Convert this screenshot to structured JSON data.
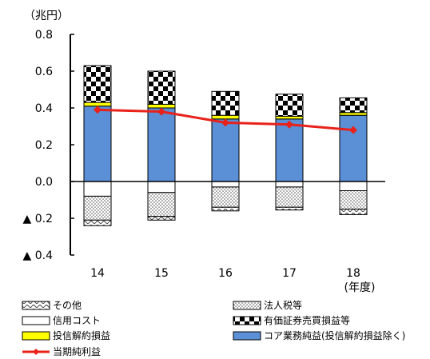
{
  "chart_data": {
    "type": "bar",
    "subtype": "stacked-bar-with-line",
    "y_unit": "（兆円）",
    "x_unit": "(年度)",
    "categories": [
      "14",
      "15",
      "16",
      "17",
      "18"
    ],
    "ylim": [
      -0.4,
      0.8
    ],
    "yticks": [
      {
        "value": 0.8,
        "label": "0.8"
      },
      {
        "value": 0.6,
        "label": "0.6"
      },
      {
        "value": 0.4,
        "label": "0.4"
      },
      {
        "value": 0.2,
        "label": "0.2"
      },
      {
        "value": 0.0,
        "label": "0.0"
      },
      {
        "value": -0.2,
        "label": "▲ 0.2"
      },
      {
        "value": -0.4,
        "label": "▲ 0.4"
      }
    ],
    "grid": false,
    "legend_position": "bottom",
    "series": [
      {
        "key": "core",
        "name": "コア業務純益(投信解約損益除く)",
        "kind": "bar",
        "color": "#5b8fd6",
        "values": [
          0.41,
          0.4,
          0.34,
          0.34,
          0.36
        ]
      },
      {
        "key": "trust",
        "name": "投信解約損益",
        "kind": "bar",
        "color": "#ffff00",
        "values": [
          0.02,
          0.02,
          0.02,
          0.015,
          0.015
        ]
      },
      {
        "key": "sec",
        "name": "有価証券売買損益等",
        "kind": "bar",
        "pattern": "checker",
        "values": [
          0.2,
          0.18,
          0.13,
          0.12,
          0.08
        ]
      },
      {
        "key": "credit",
        "name": "信用コスト",
        "kind": "bar",
        "color": "#ffffff",
        "values": [
          -0.08,
          -0.06,
          -0.03,
          -0.03,
          -0.05
        ]
      },
      {
        "key": "tax",
        "name": "法人税等",
        "kind": "bar",
        "pattern": "dots",
        "values": [
          -0.13,
          -0.13,
          -0.11,
          -0.11,
          -0.1
        ]
      },
      {
        "key": "other",
        "name": "その他",
        "kind": "bar",
        "pattern": "wave",
        "values": [
          -0.03,
          -0.02,
          -0.02,
          -0.015,
          -0.03
        ]
      },
      {
        "key": "net",
        "name": "当期純利益",
        "kind": "line",
        "color": "#e8221a",
        "values": [
          0.39,
          0.38,
          0.32,
          0.31,
          0.28
        ]
      }
    ],
    "legend": [
      {
        "key": "other",
        "label": "その他"
      },
      {
        "key": "tax",
        "label": "法人税等"
      },
      {
        "key": "credit",
        "label": "信用コスト"
      },
      {
        "key": "sec",
        "label": "有価証券売買損益等"
      },
      {
        "key": "trust",
        "label": "投信解約損益"
      },
      {
        "key": "core",
        "label": "コア業務純益(投信解約損益除く)"
      },
      {
        "key": "net",
        "label": "当期純利益"
      }
    ]
  }
}
